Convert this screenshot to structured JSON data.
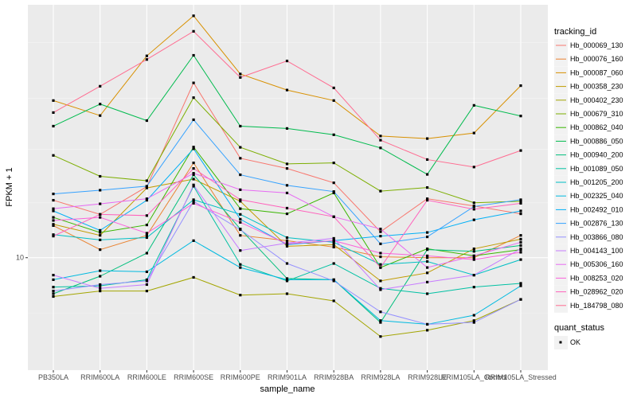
{
  "chart_data": {
    "type": "line",
    "xlabel": "sample_name",
    "ylabel": "FPKM + 1",
    "y_scale": "log10",
    "y_tick_labels": [
      "10"
    ],
    "y_tick_values": [
      10
    ],
    "ylim": [
      3.0,
      150
    ],
    "grid": true,
    "legend_position": "right",
    "categories": [
      "PB350LA",
      "RRIM600LA",
      "RRIM600LE",
      "RRIM600SE",
      "RRIM600PE",
      "RRIM901LA",
      "RRIM928BA",
      "RRIM928LA",
      "RRIM928LE",
      "RRIM105LA_Control",
      "RRIM105LA_Stressed"
    ],
    "category_labels": [
      "PB350LA",
      "RRIM600LA",
      "RRIM600LE",
      "RRIM600SE",
      "RRIM600PE",
      "RRIM901LA",
      "RRIM928BA",
      "RRIM928LA",
      "RRIM928LE",
      "RRIM105LA_Control",
      "RRIM105LA_Stressed"
    ],
    "legend": {
      "title": "tracking_id",
      "items": [
        {
          "name": "Hb_000069_130",
          "color": "#F8766D"
        },
        {
          "name": "Hb_000076_160",
          "color": "#EA8331"
        },
        {
          "name": "Hb_000087_060",
          "color": "#D89000"
        },
        {
          "name": "Hb_000358_230",
          "color": "#C09B00"
        },
        {
          "name": "Hb_000402_230",
          "color": "#A3A500"
        },
        {
          "name": "Hb_000679_310",
          "color": "#7CAE00"
        },
        {
          "name": "Hb_000862_040",
          "color": "#39B600"
        },
        {
          "name": "Hb_000886_050",
          "color": "#00BB4E"
        },
        {
          "name": "Hb_000940_200",
          "color": "#00BF7D"
        },
        {
          "name": "Hb_001089_050",
          "color": "#00C1A3"
        },
        {
          "name": "Hb_001205_200",
          "color": "#00BFC4"
        },
        {
          "name": "Hb_002325_040",
          "color": "#00BAE0"
        },
        {
          "name": "Hb_002492_010",
          "color": "#00B0F6"
        },
        {
          "name": "Hb_002876_130",
          "color": "#35A2FF"
        },
        {
          "name": "Hb_003866_080",
          "color": "#9590FF"
        },
        {
          "name": "Hb_004143_100",
          "color": "#C77CFF"
        },
        {
          "name": "Hb_005306_160",
          "color": "#E76BF3"
        },
        {
          "name": "Hb_008253_020",
          "color": "#FA62DB"
        },
        {
          "name": "Hb_028962_020",
          "color": "#FF62BC"
        },
        {
          "name": "Hb_184798_080",
          "color": "#FF6C91"
        }
      ]
    },
    "quant_status_legend": {
      "title": "quant_status",
      "items": [
        {
          "name": "OK",
          "color": "#000000"
        }
      ]
    },
    "series": [
      {
        "name": "Hb_000069_130",
        "values": [
          18.5,
          15.9,
          21.4,
          65.0,
          29.0,
          26.0,
          22.3,
          13.2,
          18.8,
          17.4,
          16.0
        ]
      },
      {
        "name": "Hb_000076_160",
        "values": [
          14.1,
          10.9,
          12.7,
          27.6,
          12.7,
          12.0,
          11.2,
          10.1,
          10.0,
          10.0,
          12.7
        ]
      },
      {
        "name": "Hb_000087_060",
        "values": [
          53.8,
          45.8,
          86.8,
          133.3,
          71.5,
          60.2,
          53.8,
          36.8,
          35.8,
          38.0,
          63.1
        ]
      },
      {
        "name": "Hb_000358_230",
        "values": [
          14.3,
          12.7,
          21.1,
          23.2,
          18.3,
          11.3,
          11.5,
          7.8,
          8.5,
          11.0,
          12.2
        ]
      },
      {
        "name": "Hb_000402_230",
        "values": [
          6.6,
          7.0,
          7.0,
          8.1,
          6.7,
          6.8,
          6.3,
          4.3,
          4.6,
          5.1,
          6.4
        ]
      },
      {
        "name": "Hb_000679_310",
        "values": [
          29.9,
          23.9,
          22.8,
          55.5,
          32.6,
          27.3,
          27.6,
          20.4,
          21.2,
          18.0,
          18.3
        ]
      },
      {
        "name": "Hb_000862_040",
        "values": [
          15.4,
          13.1,
          14.2,
          32.7,
          16.9,
          16.0,
          20.0,
          9.0,
          11.0,
          10.2,
          10.9
        ]
      },
      {
        "name": "Hb_000886_050",
        "values": [
          40.9,
          51.8,
          43.4,
          87.3,
          40.9,
          39.9,
          37.3,
          32.4,
          24.4,
          51.1,
          45.6
        ]
      },
      {
        "name": "Hb_000940_200",
        "values": [
          6.8,
          8.2,
          10.5,
          24.3,
          13.6,
          8.0,
          7.9,
          5.0,
          10.9,
          10.7,
          11.4
        ]
      },
      {
        "name": "Hb_001089_050",
        "values": [
          7.3,
          7.4,
          7.9,
          21.5,
          9.3,
          7.8,
          9.4,
          7.2,
          6.8,
          7.3,
          7.6
        ]
      },
      {
        "name": "Hb_001205_200",
        "values": [
          12.8,
          12.1,
          12.4,
          18.6,
          15.9,
          12.4,
          11.8,
          9.3,
          9.6,
          8.3,
          9.8
        ]
      },
      {
        "name": "Hb_002325_040",
        "values": [
          7.9,
          8.7,
          8.6,
          12.0,
          9.0,
          7.9,
          7.9,
          5.1,
          4.9,
          5.4,
          7.4
        ]
      },
      {
        "name": "Hb_002492_010",
        "values": [
          16.5,
          13.4,
          18.5,
          32.1,
          15.1,
          11.5,
          12.0,
          12.6,
          13.1,
          15.0,
          16.5
        ]
      },
      {
        "name": "Hb_002876_130",
        "values": [
          19.8,
          20.6,
          21.5,
          43.8,
          24.3,
          21.7,
          20.3,
          11.6,
          12.5,
          17.3,
          18.6
        ]
      },
      {
        "name": "Hb_003866_080",
        "values": [
          7.0,
          7.5,
          7.8,
          18.3,
          13.5,
          9.4,
          7.8,
          5.6,
          4.9,
          5.0,
          6.4
        ]
      },
      {
        "name": "Hb_004143_100",
        "values": [
          8.3,
          7.2,
          7.5,
          21.8,
          10.8,
          11.7,
          12.3,
          7.1,
          7.7,
          8.3,
          11.0
        ]
      },
      {
        "name": "Hb_005306_160",
        "values": [
          16.9,
          17.8,
          18.8,
          24.7,
          20.7,
          20.0,
          15.5,
          13.6,
          9.0,
          10.2,
          11.8
        ]
      },
      {
        "name": "Hb_008253_020",
        "values": [
          14.9,
          15.4,
          13.0,
          17.9,
          14.6,
          11.6,
          12.0,
          10.5,
          10.2,
          9.8,
          10.6
        ]
      },
      {
        "name": "Hb_028962_020",
        "values": [
          12.6,
          15.9,
          15.7,
          26.0,
          18.6,
          17.0,
          15.5,
          9.0,
          18.5,
          16.8,
          17.9
        ]
      },
      {
        "name": "Hb_184798_080",
        "values": [
          47.3,
          62.7,
          83.5,
          112.9,
          68.9,
          82.2,
          61.6,
          35.2,
          28.6,
          26.4,
          31.5
        ]
      }
    ]
  }
}
